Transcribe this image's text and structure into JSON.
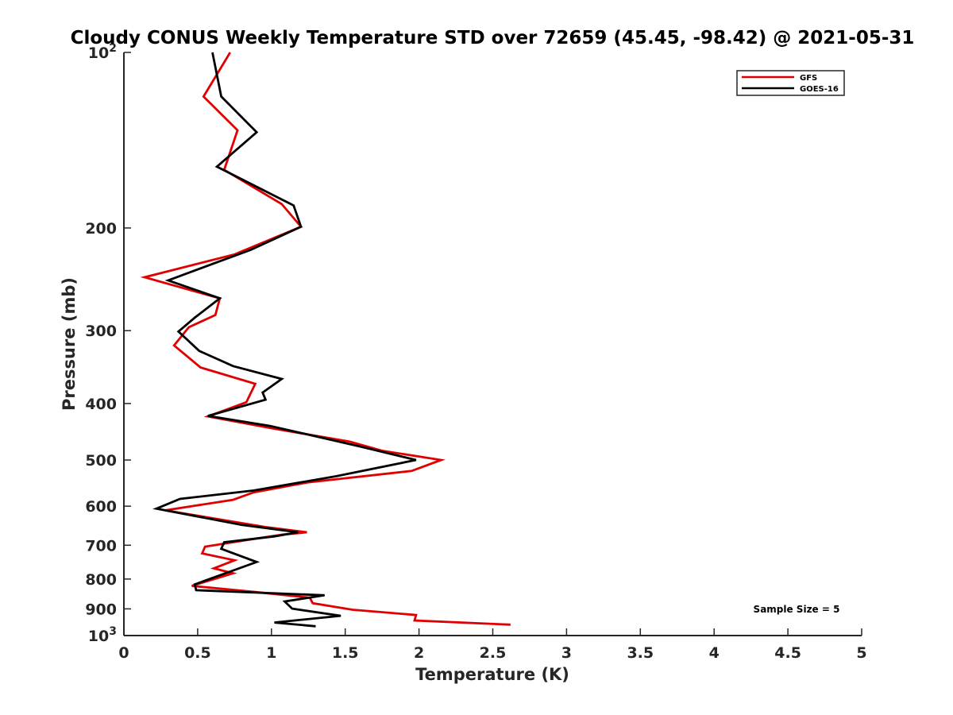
{
  "chart_data": {
    "type": "line",
    "title": "Cloudy CONUS Weekly Temperature STD over 72659 (45.45, -98.42) @ 2021-05-31",
    "xlabel": "Temperature (K)",
    "ylabel": "Pressure (mb)",
    "xlim": [
      0,
      5
    ],
    "ylim": [
      100,
      1000
    ],
    "yscale": "log",
    "y_reversed": true,
    "grid": false,
    "x_ticks": [
      {
        "value": 0,
        "label": "0"
      },
      {
        "value": 0.5,
        "label": "0.5"
      },
      {
        "value": 1,
        "label": "1"
      },
      {
        "value": 1.5,
        "label": "1.5"
      },
      {
        "value": 2,
        "label": "2"
      },
      {
        "value": 2.5,
        "label": "2.5"
      },
      {
        "value": 3,
        "label": "3"
      },
      {
        "value": 3.5,
        "label": "3.5"
      },
      {
        "value": 4,
        "label": "4"
      },
      {
        "value": 4.5,
        "label": "4.5"
      },
      {
        "value": 5,
        "label": "5"
      }
    ],
    "y_ticks": [
      {
        "value": 100,
        "label": "10",
        "sup": "2"
      },
      {
        "value": 200,
        "label": "200"
      },
      {
        "value": 300,
        "label": "300"
      },
      {
        "value": 400,
        "label": "400"
      },
      {
        "value": 500,
        "label": "500"
      },
      {
        "value": 600,
        "label": "600"
      },
      {
        "value": 700,
        "label": "700"
      },
      {
        "value": 800,
        "label": "800"
      },
      {
        "value": 900,
        "label": "900"
      },
      {
        "value": 1000,
        "label": "10",
        "sup": "3"
      }
    ],
    "legend_position": "top-right",
    "annotation": "Sample Size = 5",
    "series": [
      {
        "name": "GFS",
        "color": "#e00000",
        "points": [
          [
            0.72,
            100
          ],
          [
            0.54,
            119
          ],
          [
            0.77,
            136
          ],
          [
            0.68,
            159
          ],
          [
            1.07,
            182
          ],
          [
            1.2,
            199
          ],
          [
            0.75,
            222
          ],
          [
            0.14,
            243
          ],
          [
            0.65,
            264
          ],
          [
            0.62,
            282
          ],
          [
            0.44,
            296
          ],
          [
            0.34,
            318
          ],
          [
            0.52,
            347
          ],
          [
            0.89,
            370
          ],
          [
            0.83,
            398
          ],
          [
            0.57,
            421
          ],
          [
            1.0,
            441
          ],
          [
            1.53,
            465
          ],
          [
            1.75,
            482
          ],
          [
            2.15,
            500
          ],
          [
            1.95,
            522
          ],
          [
            1.25,
            546
          ],
          [
            0.88,
            568
          ],
          [
            0.74,
            585
          ],
          [
            0.28,
            610
          ],
          [
            0.97,
            652
          ],
          [
            1.24,
            665
          ],
          [
            1.08,
            671
          ],
          [
            0.83,
            686
          ],
          [
            0.55,
            704
          ],
          [
            0.53,
            723
          ],
          [
            0.75,
            743
          ],
          [
            0.61,
            767
          ],
          [
            0.74,
            782
          ],
          [
            0.46,
            822
          ],
          [
            0.89,
            842
          ],
          [
            1.26,
            861
          ],
          [
            1.28,
            880
          ],
          [
            1.55,
            903
          ],
          [
            1.98,
            922
          ],
          [
            1.97,
            942
          ],
          [
            2.62,
            958
          ]
        ]
      },
      {
        "name": "GOES-16",
        "color": "#000000",
        "points": [
          [
            0.6,
            100
          ],
          [
            0.66,
            119
          ],
          [
            0.9,
            137
          ],
          [
            0.63,
            157
          ],
          [
            1.15,
            183
          ],
          [
            1.2,
            199
          ],
          [
            0.86,
            218
          ],
          [
            0.3,
            246
          ],
          [
            0.65,
            264
          ],
          [
            0.48,
            285
          ],
          [
            0.37,
            301
          ],
          [
            0.51,
            325
          ],
          [
            0.74,
            345
          ],
          [
            1.07,
            363
          ],
          [
            0.94,
            383
          ],
          [
            0.96,
            394
          ],
          [
            0.57,
            420
          ],
          [
            0.99,
            437
          ],
          [
            1.6,
            474
          ],
          [
            1.98,
            500
          ],
          [
            1.44,
            533
          ],
          [
            0.88,
            564
          ],
          [
            0.38,
            583
          ],
          [
            0.22,
            606
          ],
          [
            0.8,
            646
          ],
          [
            1.18,
            665
          ],
          [
            1.02,
            676
          ],
          [
            0.68,
            692
          ],
          [
            0.66,
            710
          ],
          [
            0.9,
            748
          ],
          [
            0.48,
            817
          ],
          [
            0.49,
            836
          ],
          [
            1.36,
            853
          ],
          [
            1.09,
            874
          ],
          [
            1.14,
            899
          ],
          [
            1.47,
            925
          ],
          [
            1.02,
            950
          ],
          [
            1.3,
            964
          ]
        ]
      }
    ]
  }
}
